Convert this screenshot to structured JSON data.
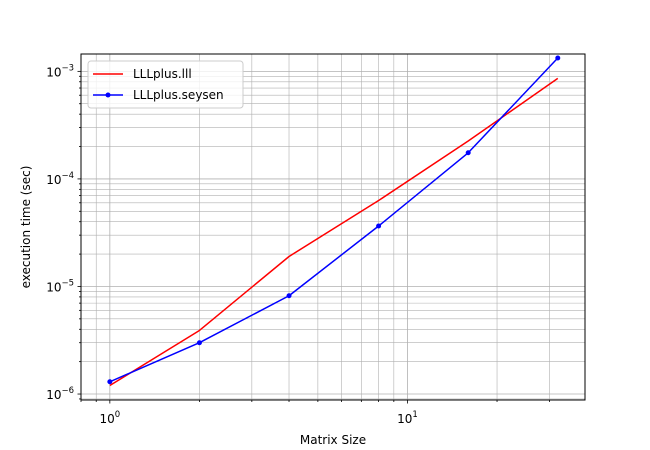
{
  "chart_data": {
    "type": "line",
    "xlabel": "Matrix Size",
    "ylabel": "execution time (sec)",
    "xscale": "log",
    "yscale": "log",
    "xlim": [
      0.8,
      39.5
    ],
    "ylim": [
      8.8e-07,
      0.00145
    ],
    "grid": "both",
    "legend_position": "top-left",
    "x_ticks": [
      {
        "value": 1,
        "base": "10",
        "exp": "0"
      },
      {
        "value": 10,
        "base": "10",
        "exp": "1"
      }
    ],
    "y_ticks": [
      {
        "value": 1e-06,
        "base": "10",
        "exp": "−6"
      },
      {
        "value": 1e-05,
        "base": "10",
        "exp": "−5"
      },
      {
        "value": 0.0001,
        "base": "10",
        "exp": "−4"
      },
      {
        "value": 0.001,
        "base": "10",
        "exp": "−3"
      }
    ],
    "series": [
      {
        "name": "LLLplus.lll",
        "color": "#ff0000",
        "marker": "none",
        "x": [
          1,
          2,
          4,
          8,
          16,
          32
        ],
        "y": [
          1.2e-06,
          3.9e-06,
          1.9e-05,
          6.3e-05,
          0.000225,
          0.00086
        ]
      },
      {
        "name": "LLLplus.seysen",
        "color": "#0000ff",
        "marker": "dot",
        "x": [
          1,
          2,
          4,
          8,
          16,
          32
        ],
        "y": [
          1.3e-06,
          3e-06,
          8.2e-06,
          3.65e-05,
          0.000175,
          0.00133
        ]
      }
    ]
  }
}
